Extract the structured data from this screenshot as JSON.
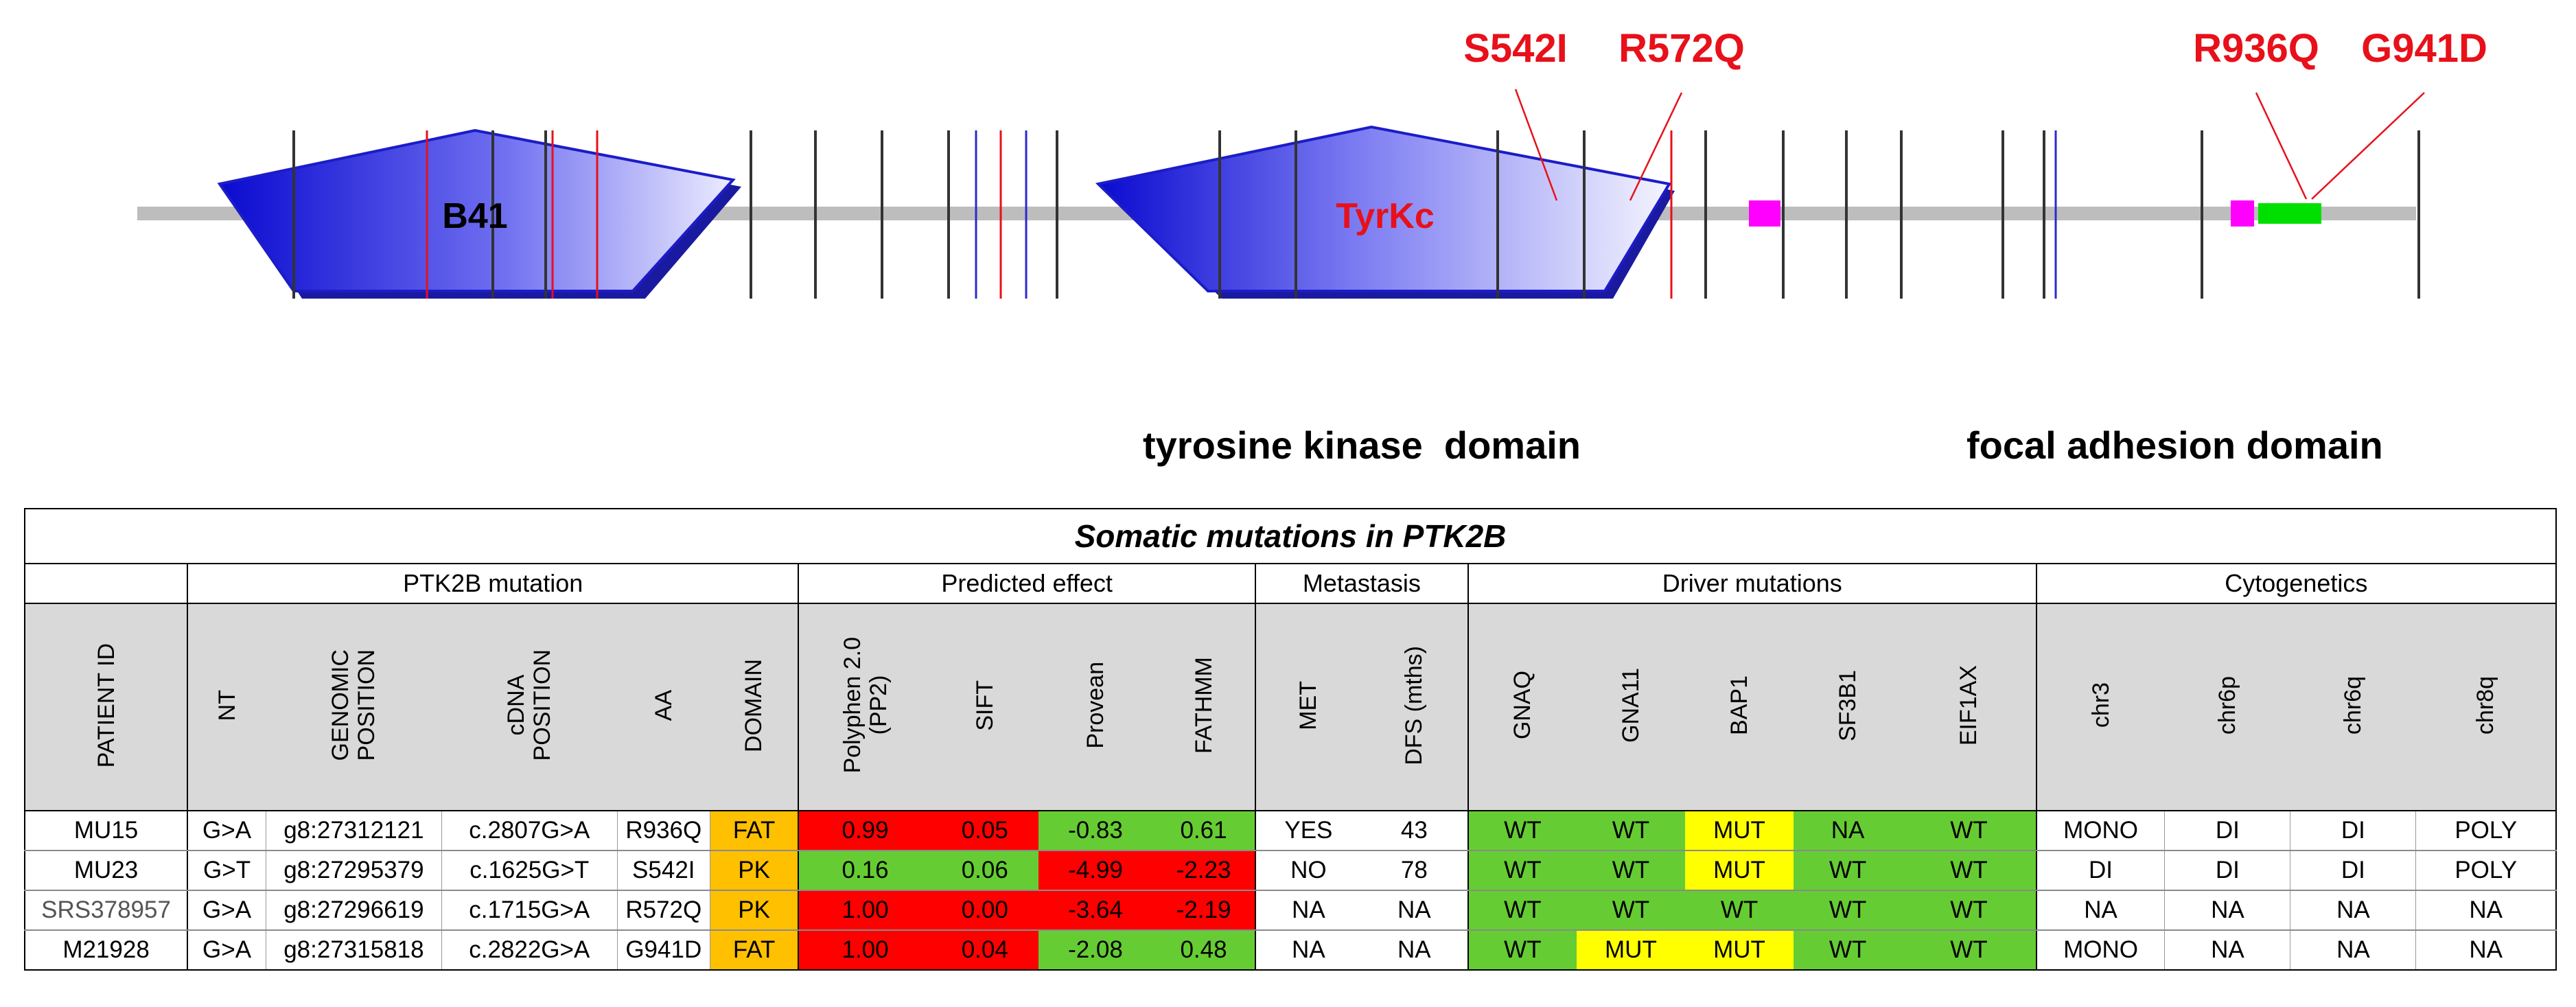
{
  "diagram": {
    "domains": [
      {
        "label": "B41"
      },
      {
        "label": "TyrKc"
      }
    ],
    "mutation_labels": [
      "S542I",
      "R572Q",
      "R936Q",
      "G941D"
    ],
    "section_labels": {
      "tyrosine_kinase": "tyrosine kinase  domain",
      "focal_adhesion": "focal adhesion domain"
    },
    "colors": {
      "backbone": "#bdbdbd",
      "domain_blue": "#1f1fd6",
      "mutation_red": "#e8101a",
      "magenta": "#ff00ff",
      "green": "#00e000"
    }
  },
  "table": {
    "title": "Somatic mutations in PTK2B",
    "groups": [
      "PTK2B mutation",
      "Predicted effect",
      "Metastasis",
      "Driver mutations",
      "Cytogenetics"
    ],
    "headers": {
      "patient_id": "PATIENT ID",
      "nt": "NT",
      "genomic_position": "GENOMIC\nPOSITION",
      "cdna_position": "cDNA\nPOSITION",
      "aa": "AA",
      "domain": "DOMAIN",
      "polyphen": "Polyphen 2.0\n(PP2)",
      "sift": "SIFT",
      "provean": "Provean",
      "fathmm": "FATHMM",
      "met": "MET",
      "dfs": "DFS (mths)",
      "gnaq": "GNAQ",
      "gna11": "GNA11",
      "bap1": "BAP1",
      "sf3b1": "SF3B1",
      "eif1ax": "EIF1AX",
      "chr3": "chr3",
      "chr6p": "chr6p",
      "chr6q": "chr6q",
      "chr8q": "chr8q"
    },
    "rows": [
      {
        "patient_id": "MU15",
        "nt": "G>A",
        "genomic_position": "g8:27312121",
        "cdna_position": "c.2807G>A",
        "aa": "R936Q",
        "domain": "FAT",
        "polyphen": "0.99",
        "sift": "0.05",
        "provean": "-0.83",
        "fathmm": "0.61",
        "met": "YES",
        "dfs": "43",
        "gnaq": "WT",
        "gna11": "WT",
        "bap1": "MUT",
        "sf3b1": "NA",
        "eif1ax": "WT",
        "chr3": "MONO",
        "chr6p": "DI",
        "chr6q": "DI",
        "chr8q": "POLY"
      },
      {
        "patient_id": "MU23",
        "nt": "G>T",
        "genomic_position": "g8:27295379",
        "cdna_position": "c.1625G>T",
        "aa": "S542I",
        "domain": "PK",
        "polyphen": "0.16",
        "sift": "0.06",
        "provean": "-4.99",
        "fathmm": "-2.23",
        "met": "NO",
        "dfs": "78",
        "gnaq": "WT",
        "gna11": "WT",
        "bap1": "MUT",
        "sf3b1": "WT",
        "eif1ax": "WT",
        "chr3": "DI",
        "chr6p": "DI",
        "chr6q": "DI",
        "chr8q": "POLY"
      },
      {
        "patient_id": "SRS378957",
        "nt": "G>A",
        "genomic_position": "g8:27296619",
        "cdna_position": "c.1715G>A",
        "aa": "R572Q",
        "domain": "PK",
        "polyphen": "1.00",
        "sift": "0.00",
        "provean": "-3.64",
        "fathmm": "-2.19",
        "met": "NA",
        "dfs": "NA",
        "gnaq": "WT",
        "gna11": "WT",
        "bap1": "WT",
        "sf3b1": "WT",
        "eif1ax": "WT",
        "chr3": "NA",
        "chr6p": "NA",
        "chr6q": "NA",
        "chr8q": "NA"
      },
      {
        "patient_id": "M21928",
        "nt": "G>A",
        "genomic_position": "g8:27315818",
        "cdna_position": "c.2822G>A",
        "aa": "G941D",
        "domain": "FAT",
        "polyphen": "1.00",
        "sift": "0.04",
        "provean": "-2.08",
        "fathmm": "0.48",
        "met": "NA",
        "dfs": "NA",
        "gnaq": "WT",
        "gna11": "MUT",
        "bap1": "MUT",
        "sf3b1": "WT",
        "eif1ax": "WT",
        "chr3": "MONO",
        "chr6p": "NA",
        "chr6q": "NA",
        "chr8q": "NA"
      }
    ],
    "cell_colors": {
      "red": "#ff0000",
      "green": "#66cc33",
      "yellow": "#ffff00",
      "orange": "#ffc000",
      "header_grey": "#d9d9d9"
    },
    "row_colors": [
      {
        "polyphen": "red",
        "sift": "red",
        "provean": "green",
        "fathmm": "green",
        "gnaq": "green",
        "gna11": "green",
        "bap1": "yellow",
        "sf3b1": "green",
        "eif1ax": "green"
      },
      {
        "polyphen": "green",
        "sift": "green",
        "provean": "red",
        "fathmm": "red",
        "gnaq": "green",
        "gna11": "green",
        "bap1": "yellow",
        "sf3b1": "green",
        "eif1ax": "green"
      },
      {
        "polyphen": "red",
        "sift": "red",
        "provean": "red",
        "fathmm": "red",
        "gnaq": "green",
        "gna11": "green",
        "bap1": "green",
        "sf3b1": "green",
        "eif1ax": "green"
      },
      {
        "polyphen": "red",
        "sift": "red",
        "provean": "green",
        "fathmm": "green",
        "gnaq": "green",
        "gna11": "yellow",
        "bap1": "yellow",
        "sf3b1": "green",
        "eif1ax": "green"
      }
    ]
  }
}
